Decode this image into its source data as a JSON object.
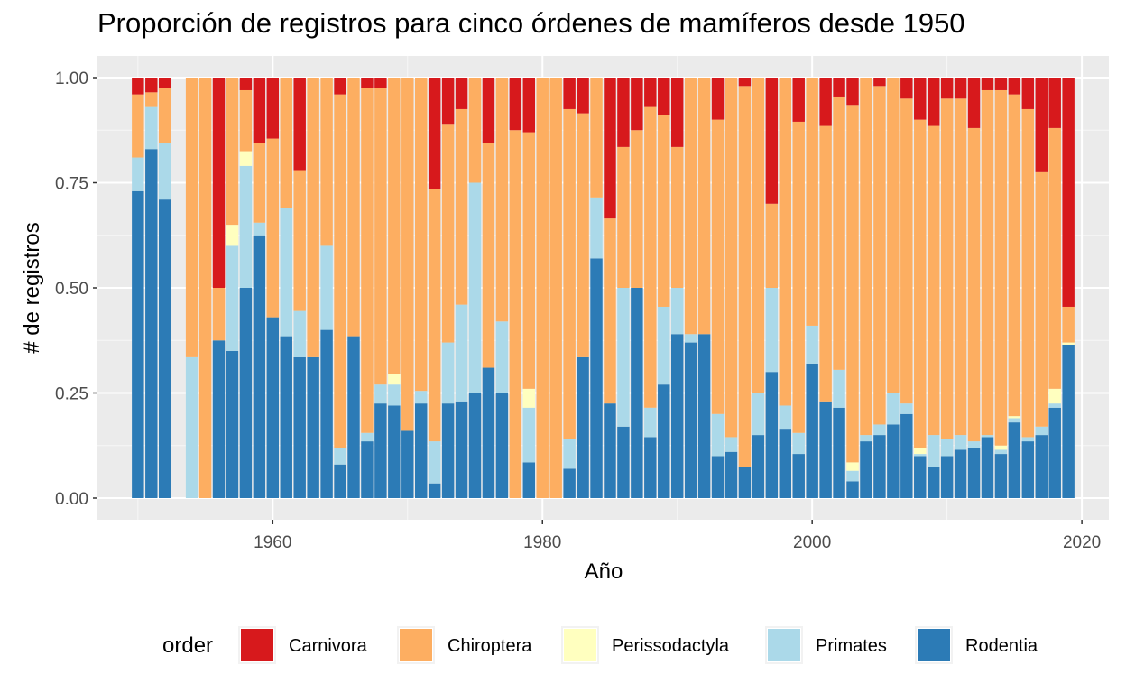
{
  "chart_data": {
    "type": "bar",
    "stacked": "proportion",
    "title": "Proporción de registros para cinco órdenes de mamíferos desde 1950",
    "xlabel": "Año",
    "ylabel": "# de registros",
    "xlim": [
      1947,
      2022
    ],
    "ylim": [
      0,
      1
    ],
    "x_ticks": [
      1960,
      1980,
      2000,
      2020
    ],
    "x_tick_labels": [
      "1960",
      "1980",
      "2000",
      "2020"
    ],
    "y_ticks": [
      0,
      0.25,
      0.5,
      0.75,
      1
    ],
    "y_tick_labels": [
      "0.00",
      "0.25",
      "0.50",
      "0.75",
      "1.00"
    ],
    "grid": true,
    "legend_position": "bottom",
    "legend_title": "order",
    "series": [
      {
        "name": "Rodentia",
        "color": "#2c7bb6"
      },
      {
        "name": "Primates",
        "color": "#abd9e9"
      },
      {
        "name": "Perissodactyla",
        "color": "#ffffbf"
      },
      {
        "name": "Chiroptera",
        "color": "#fdae61"
      },
      {
        "name": "Carnivora",
        "color": "#d7191c"
      }
    ],
    "legend_order": [
      "Carnivora",
      "Chiroptera",
      "Perissodactyla",
      "Primates",
      "Rodentia"
    ],
    "years": [
      1950,
      1951,
      1952,
      1954,
      1955,
      1956,
      1957,
      1958,
      1959,
      1960,
      1961,
      1962,
      1963,
      1964,
      1965,
      1966,
      1967,
      1968,
      1969,
      1970,
      1971,
      1972,
      1973,
      1974,
      1975,
      1976,
      1977,
      1978,
      1979,
      1980,
      1981,
      1982,
      1983,
      1984,
      1985,
      1986,
      1987,
      1988,
      1989,
      1990,
      1991,
      1992,
      1993,
      1994,
      1995,
      1996,
      1997,
      1998,
      1999,
      2000,
      2001,
      2002,
      2003,
      2004,
      2005,
      2006,
      2007,
      2008,
      2009,
      2010,
      2011,
      2012,
      2013,
      2014,
      2015,
      2016,
      2017,
      2018,
      2019
    ],
    "cumulative": {
      "Rodentia": [
        0.73,
        0.83,
        0.71,
        0,
        0,
        0.375,
        0.35,
        0.5,
        0.625,
        0.43,
        0.385,
        0.335,
        0.335,
        0.4,
        0.08,
        0.385,
        0.135,
        0.225,
        0.22,
        0.16,
        0.225,
        0.035,
        0.225,
        0.23,
        0.25,
        0.31,
        0.25,
        0,
        0.085,
        0,
        0,
        0.07,
        0.335,
        0.57,
        0.225,
        0.17,
        0.5,
        0.145,
        0.27,
        0.39,
        0.37,
        0.39,
        0.1,
        0.11,
        0.075,
        0.15,
        0.3,
        0.165,
        0.105,
        0.32,
        0.23,
        0.215,
        0.04,
        0.135,
        0.15,
        0.175,
        0.2,
        0.1,
        0.075,
        0.1,
        0.115,
        0.12,
        0.145,
        0.105,
        0.18,
        0.135,
        0.15,
        0.215,
        0.365
      ],
      "Primates": [
        0.81,
        0.93,
        0.845,
        0.335,
        0,
        0.375,
        0.6,
        0.79,
        0.655,
        0.43,
        0.69,
        0.445,
        0.335,
        0.6,
        0.12,
        0.385,
        0.155,
        0.27,
        0.27,
        0.16,
        0.255,
        0.135,
        0.37,
        0.46,
        0.75,
        0.31,
        0.42,
        0,
        0.215,
        0,
        0,
        0.14,
        0.335,
        0.715,
        0.225,
        0.5,
        0.5,
        0.215,
        0.455,
        0.5,
        0.39,
        0.39,
        0.2,
        0.145,
        0.075,
        0.25,
        0.5,
        0.22,
        0.155,
        0.41,
        0.23,
        0.305,
        0.065,
        0.15,
        0.175,
        0.25,
        0.225,
        0.105,
        0.15,
        0.14,
        0.15,
        0.135,
        0.15,
        0.115,
        0.19,
        0.145,
        0.17,
        0.225,
        0.365
      ],
      "Perissodactyla": [
        0.81,
        0.93,
        0.845,
        0.335,
        0,
        0.375,
        0.65,
        0.825,
        0.655,
        0.43,
        0.69,
        0.445,
        0.335,
        0.6,
        0.12,
        0.385,
        0.155,
        0.27,
        0.295,
        0.16,
        0.255,
        0.135,
        0.37,
        0.46,
        0.75,
        0.31,
        0.42,
        0,
        0.26,
        0,
        0,
        0.14,
        0.335,
        0.715,
        0.225,
        0.5,
        0.5,
        0.215,
        0.455,
        0.5,
        0.39,
        0.39,
        0.2,
        0.145,
        0.075,
        0.25,
        0.5,
        0.22,
        0.155,
        0.41,
        0.23,
        0.305,
        0.085,
        0.15,
        0.175,
        0.25,
        0.225,
        0.12,
        0.15,
        0.14,
        0.15,
        0.135,
        0.15,
        0.125,
        0.195,
        0.145,
        0.17,
        0.26,
        0.37
      ],
      "Chiroptera": [
        0.96,
        0.965,
        0.975,
        1,
        1,
        0.5,
        1,
        0.97,
        0.845,
        0.855,
        1,
        0.78,
        1,
        1,
        0.96,
        1,
        0.975,
        0.975,
        1,
        1,
        1,
        0.735,
        0.89,
        0.925,
        1,
        0.845,
        1,
        0.875,
        0.87,
        1,
        1,
        0.925,
        0.915,
        1,
        0.665,
        0.835,
        0.875,
        0.93,
        0.91,
        0.835,
        1,
        1,
        0.9,
        1,
        0.98,
        1,
        0.7,
        1,
        0.895,
        1,
        0.885,
        0.955,
        0.935,
        1,
        0.98,
        1,
        0.95,
        0.9,
        0.885,
        0.95,
        0.95,
        0.88,
        0.97,
        0.97,
        0.96,
        0.925,
        0.775,
        0.88,
        0.455
      ],
      "Carnivora": [
        1,
        1,
        1,
        1,
        1,
        1,
        1,
        1,
        1,
        1,
        1,
        1,
        1,
        1,
        1,
        1,
        1,
        1,
        1,
        1,
        1,
        1,
        1,
        1,
        1,
        1,
        1,
        1,
        1,
        1,
        1,
        1,
        1,
        1,
        1,
        1,
        1,
        1,
        1,
        1,
        1,
        1,
        1,
        1,
        1,
        1,
        1,
        1,
        1,
        1,
        1,
        1,
        1,
        1,
        1,
        1,
        1,
        1,
        1,
        1,
        1,
        1,
        1,
        1,
        1,
        1,
        1,
        1,
        1
      ]
    }
  }
}
